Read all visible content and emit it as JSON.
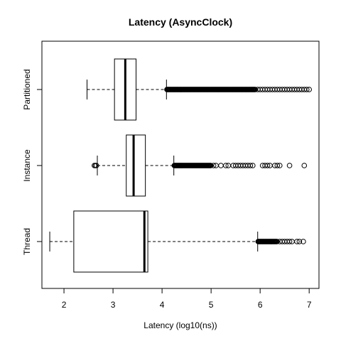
{
  "chart_data": {
    "type": "boxplot",
    "title": "Latency (AsyncClock)",
    "xlabel": "Latency (log10(ns))",
    "ylabel": "",
    "xlim": [
      1.55,
      7.2
    ],
    "x_ticks": [
      "2",
      "3",
      "4",
      "5",
      "6",
      "7"
    ],
    "x_tick_values": [
      2,
      3,
      4,
      5,
      6,
      7
    ],
    "orientation": "horizontal",
    "grid": false,
    "categories": [
      "Partitioned",
      "Instance",
      "Thread"
    ],
    "boxes": [
      {
        "name": "Partitioned",
        "whisker_low": 2.47,
        "q1": 3.03,
        "median": 3.25,
        "q3": 3.47,
        "whisker_high": 4.09,
        "outliers_dense_range": [
          4.1,
          5.9
        ],
        "outliers_sparse": [
          5.95,
          6.0,
          6.05,
          6.1,
          6.15,
          6.2,
          6.25,
          6.3,
          6.35,
          6.4,
          6.45,
          6.5,
          6.55,
          6.6,
          6.65,
          6.7,
          6.75,
          6.8,
          6.85,
          6.9,
          6.95,
          7.0
        ]
      },
      {
        "name": "Instance",
        "whisker_low": 2.68,
        "q1": 3.27,
        "median": 3.42,
        "q3": 3.66,
        "whisker_high": 4.24,
        "outliers_low": [
          2.62,
          2.64,
          2.66
        ],
        "outliers_dense_range": [
          4.25,
          5.0
        ],
        "outliers_sparse": [
          5.05,
          5.1,
          5.2,
          5.3,
          5.35,
          5.45,
          5.5,
          5.55,
          5.6,
          5.65,
          5.7,
          5.75,
          5.8,
          5.85,
          6.05,
          6.1,
          6.15,
          6.2,
          6.3,
          6.35,
          6.4,
          6.6,
          6.9
        ]
      },
      {
        "name": "Thread",
        "whisker_low": 1.71,
        "q1": 2.2,
        "median": 3.64,
        "q3": 3.71,
        "whisker_high": 5.95,
        "outliers_dense_range": [
          5.96,
          6.35
        ],
        "outliers_sparse": [
          6.4,
          6.45,
          6.5,
          6.55,
          6.6,
          6.65,
          6.75,
          6.8,
          6.88
        ]
      }
    ]
  }
}
